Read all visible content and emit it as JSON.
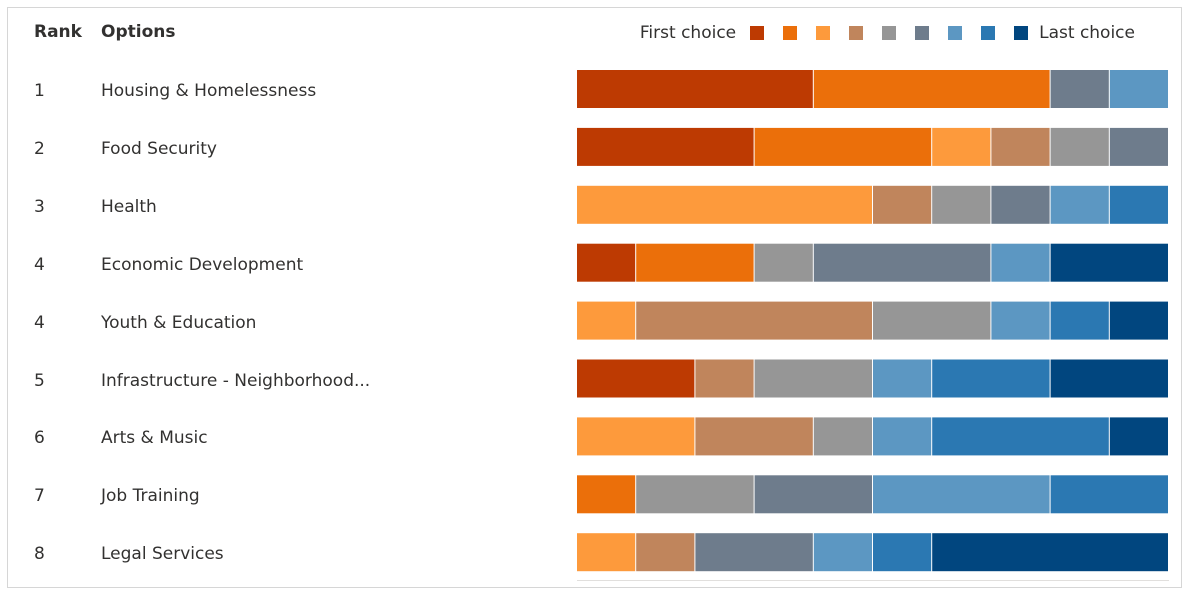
{
  "headers": {
    "rank": "Rank",
    "options": "Options"
  },
  "legend": {
    "first": "First choice",
    "last": "Last choice"
  },
  "colors": [
    "#bd3a02",
    "#eb6f0a",
    "#fd9a3c",
    "#c0855c",
    "#969696",
    "#6e7c8c",
    "#5c97c2",
    "#2b78b2",
    "#01467f"
  ],
  "rows": [
    {
      "rank": "1",
      "option": "Housing & Homelessness"
    },
    {
      "rank": "2",
      "option": "Food Security"
    },
    {
      "rank": "3",
      "option": "Health"
    },
    {
      "rank": "4",
      "option": "Economic Development"
    },
    {
      "rank": "4",
      "option": "Youth & Education"
    },
    {
      "rank": "5",
      "option": "Infrastructure - Neighborhood..."
    },
    {
      "rank": "6",
      "option": "Arts & Music"
    },
    {
      "rank": "7",
      "option": "Job Training"
    },
    {
      "rank": "8",
      "option": "Legal Services"
    }
  ],
  "chart_data": {
    "type": "bar",
    "stacked": true,
    "orientation": "horizontal",
    "normalized": true,
    "categories": [
      "Housing & Homelessness",
      "Food Security",
      "Health",
      "Economic Development",
      "Youth & Education",
      "Infrastructure - Neighborhood...",
      "Arts & Music",
      "Job Training",
      "Legal Services"
    ],
    "series": [
      {
        "color": "#bd3a02",
        "values": [
          4,
          3,
          0,
          1,
          0,
          2,
          0,
          0,
          0
        ]
      },
      {
        "color": "#eb6f0a",
        "values": [
          4,
          3,
          0,
          2,
          0,
          0,
          0,
          1,
          0
        ]
      },
      {
        "color": "#fd9a3c",
        "values": [
          0,
          1,
          5,
          0,
          1,
          0,
          2,
          0,
          1
        ]
      },
      {
        "color": "#c0855c",
        "values": [
          0,
          1,
          1,
          0,
          4,
          1,
          2,
          0,
          1
        ]
      },
      {
        "color": "#969696",
        "values": [
          0,
          1,
          1,
          1,
          2,
          2,
          1,
          2,
          0
        ]
      },
      {
        "color": "#6e7c8c",
        "values": [
          1,
          1,
          1,
          3,
          0,
          0,
          0,
          2,
          2
        ]
      },
      {
        "color": "#5c97c2",
        "values": [
          1,
          0,
          1,
          1,
          1,
          1,
          1,
          3,
          1
        ]
      },
      {
        "color": "#2b78b2",
        "values": [
          0,
          0,
          1,
          0,
          1,
          2,
          3,
          2,
          1
        ]
      },
      {
        "color": "#01467f",
        "values": [
          0,
          0,
          0,
          2,
          1,
          2,
          1,
          0,
          4
        ]
      }
    ]
  }
}
